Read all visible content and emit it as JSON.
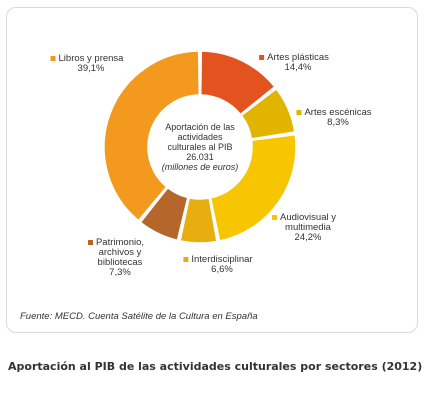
{
  "chart_data": {
    "type": "pie",
    "center_label": [
      "Aportación de las",
      "actividades",
      "culturales al PIB",
      "26.031",
      "(millones de euros)"
    ],
    "slices": [
      {
        "label": [
          "Artes plásticas"
        ],
        "value_label": "14,4%",
        "value": 14.4,
        "color": "#e2531f"
      },
      {
        "label": [
          "Artes escénicas"
        ],
        "value_label": "8,3%",
        "value": 8.3,
        "color": "#e1b400"
      },
      {
        "label": [
          "Audiovisual y",
          "multimedia"
        ],
        "value_label": "24,2%",
        "value": 24.2,
        "color": "#f7c600"
      },
      {
        "label": [
          "Interdisciplinar"
        ],
        "value_label": "6,6%",
        "value": 6.6,
        "color": "#e8ae10"
      },
      {
        "label": [
          "Patrimonio,",
          "archivos y",
          "bibliotecas"
        ],
        "value_label": "7,3%",
        "value": 7.3,
        "color": "#b5662a"
      },
      {
        "label": [
          "Libros y prensa"
        ],
        "value_label": "39,1%",
        "value": 39.1,
        "color": "#f39a1e"
      }
    ]
  },
  "source": "Fuente: MECD. Cuenta Satélite de la Cultura en España",
  "caption": "Aportación al PIB de las actividades culturales por sectores (2012)"
}
